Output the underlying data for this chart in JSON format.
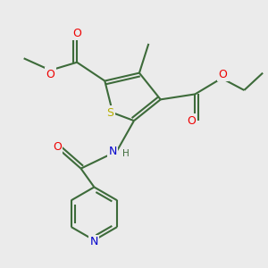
{
  "bg_color": "#ebebeb",
  "atom_colors": {
    "C": "#3d6b3a",
    "S": "#b8b000",
    "O": "#ee0000",
    "N": "#0000cc",
    "H": "#3d6b3a"
  },
  "bond_color": "#3d6b3a",
  "line_width": 1.5
}
